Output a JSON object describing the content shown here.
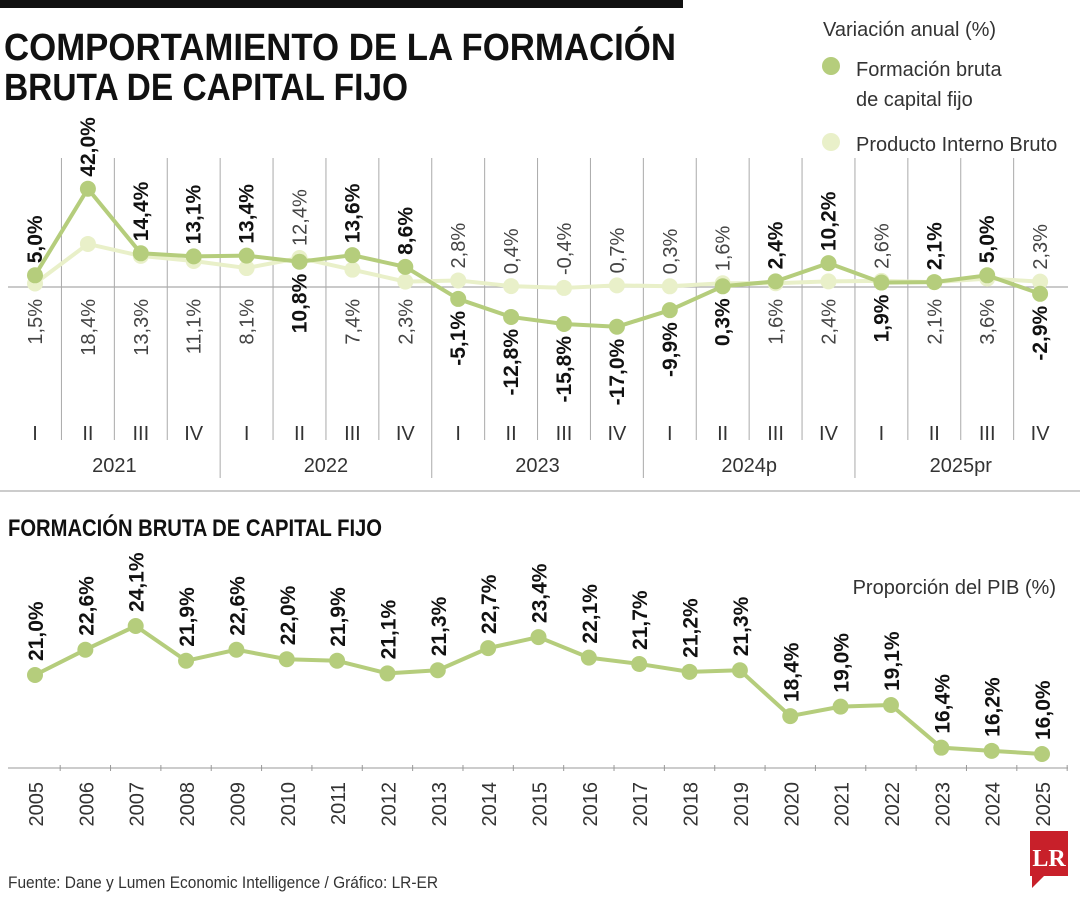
{
  "title": "COMPORTAMIENTO DE LA FORMACIÓN BRUTA DE CAPITAL FIJO",
  "title_lines": [
    "COMPORTAMIENTO DE LA FORMACIÓN",
    "BRUTA DE CAPITAL FIJO"
  ],
  "colors": {
    "fbcf": "#b5cd7c",
    "pib": "#e9f0c9",
    "brand": "#c8202a"
  },
  "chart_data": [
    {
      "type": "line",
      "ylabel": "Variación anual (%)",
      "legend": {
        "placement": "top-right",
        "entries": [
          "Formación bruta de capital fijo",
          "Producto Interno Bruto"
        ],
        "entry_lines": [
          [
            "Formación bruta",
            "de capital fijo"
          ],
          [
            "Producto Interno Bruto"
          ]
        ]
      },
      "quarters": [
        "I",
        "II",
        "III",
        "IV",
        "I",
        "II",
        "III",
        "IV",
        "I",
        "II",
        "III",
        "IV",
        "I",
        "II",
        "III",
        "IV",
        "I",
        "II",
        "III",
        "IV"
      ],
      "years": [
        "2021",
        "2022",
        "2023",
        "2024p",
        "2025pr"
      ],
      "series": [
        {
          "name": "Formación bruta de capital fijo",
          "values": [
            5.0,
            42.0,
            14.4,
            13.1,
            13.4,
            10.8,
            13.6,
            8.6,
            -5.1,
            -12.8,
            -15.8,
            -17.0,
            -9.9,
            0.3,
            2.4,
            10.2,
            1.9,
            2.1,
            5.0,
            -2.9
          ],
          "labels": [
            "5,0%",
            "42,0%",
            "14,4%",
            "13,1%",
            "13,4%",
            "10,8%",
            "13,6%",
            "8,6%",
            "-5,1%",
            "-12,8%",
            "-15,8%",
            "-17,0%",
            "-9,9%",
            "0,3%",
            "2,4%",
            "10,2%",
            "1,9%",
            "2,1%",
            "5,0%",
            "-2,9%"
          ]
        },
        {
          "name": "Producto Interno Bruto",
          "values": [
            1.5,
            18.4,
            13.3,
            11.1,
            8.1,
            12.4,
            7.4,
            2.3,
            2.8,
            0.4,
            -0.4,
            0.7,
            0.3,
            1.6,
            1.6,
            2.4,
            2.6,
            2.1,
            3.6,
            2.3
          ],
          "labels": [
            "1,5%",
            "18,4%",
            "13,3%",
            "11,1%",
            "8,1%",
            "12,4%",
            "7,4%",
            "2,3%",
            "2,8%",
            "0,4%",
            "-0,4%",
            "0,7%",
            "0,3%",
            "1,6%",
            "1,6%",
            "2,4%",
            "2,6%",
            "2,1%",
            "3,6%",
            "2,3%"
          ]
        }
      ]
    },
    {
      "type": "line",
      "title": "FORMACIÓN BRUTA DE CAPITAL FIJO",
      "ylabel": "Proporción del PIB (%)",
      "categories": [
        "2005",
        "2006",
        "2007",
        "2008",
        "2009",
        "2010",
        "2011",
        "2012",
        "2013",
        "2014",
        "2015",
        "2016",
        "2017",
        "2018",
        "2019",
        "2020",
        "2021",
        "2022",
        "2023",
        "2024",
        "2025"
      ],
      "values": [
        21.0,
        22.6,
        24.1,
        21.9,
        22.6,
        22.0,
        21.9,
        21.1,
        21.3,
        22.7,
        23.4,
        22.1,
        21.7,
        21.2,
        21.3,
        18.4,
        19.0,
        19.1,
        16.4,
        16.2,
        16.0
      ],
      "labels": [
        "21,0%",
        "22,6%",
        "24,1%",
        "21,9%",
        "22,6%",
        "22,0%",
        "21,9%",
        "21,1%",
        "21,3%",
        "22,7%",
        "23,4%",
        "22,1%",
        "21,7%",
        "21,2%",
        "21,3%",
        "18,4%",
        "19,0%",
        "19,1%",
        "16,4%",
        "16,2%",
        "16,0%"
      ]
    }
  ],
  "source": "Fuente: Dane y Lumen Economic Intelligence / Gráfico: LR-ER",
  "logo": "LR"
}
